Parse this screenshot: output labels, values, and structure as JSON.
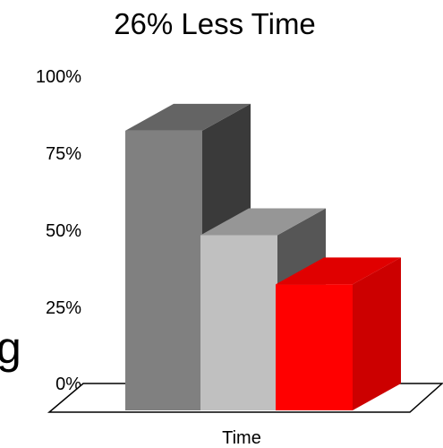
{
  "chart_data": {
    "type": "bar",
    "title": "26% Less Time",
    "xlabel": "Time",
    "ylabel": "",
    "categories": [
      "Time"
    ],
    "series": [
      {
        "values": [
          91
        ],
        "color": "#808080"
      },
      {
        "values": [
          57
        ],
        "color": "#c0c0c0"
      },
      {
        "values": [
          41
        ],
        "color": "#ff0000"
      }
    ],
    "ylim": [
      0,
      100
    ],
    "yticks": [
      "0%",
      "25%",
      "50%",
      "75%",
      "100%"
    ],
    "three_d": true,
    "grid": false,
    "legend": "none"
  },
  "background_fragment": "g"
}
